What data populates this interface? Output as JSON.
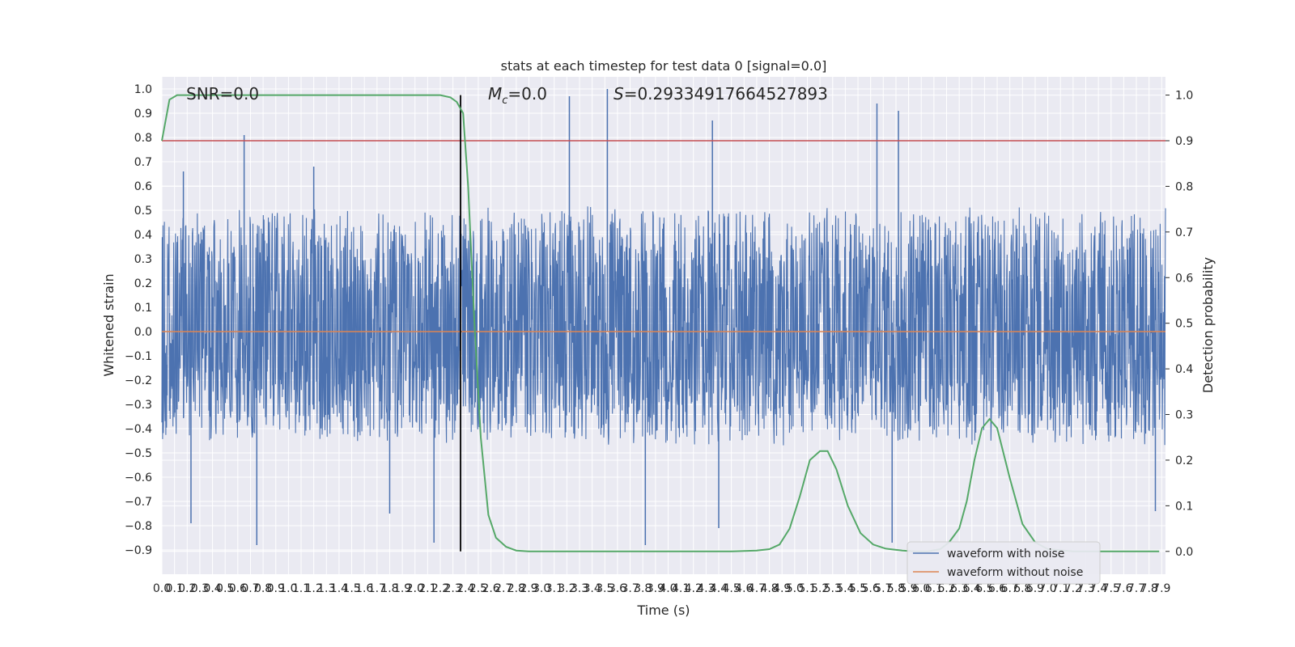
{
  "chart_data": {
    "type": "line",
    "title": "stats at each timestep for test data 0 [signal=0.0]",
    "xlabel": "Time (s)",
    "ylabel": "Whitened strain",
    "y2label": "Detection probability",
    "xlim": [
      0.0,
      7.93
    ],
    "ylim": [
      -1.0,
      1.05
    ],
    "y2lim": [
      -0.05,
      1.04
    ],
    "x_tick_step": 0.1,
    "y_ticks": [
      -0.9,
      -0.8,
      -0.7,
      -0.6,
      -0.5,
      -0.4,
      -0.3,
      -0.2,
      -0.1,
      0.0,
      0.1,
      0.2,
      0.3,
      0.4,
      0.5,
      0.6,
      0.7,
      0.8,
      0.9,
      1.0
    ],
    "y2_ticks": [
      0.0,
      0.1,
      0.2,
      0.3,
      0.4,
      0.5,
      0.6,
      0.7,
      0.8,
      0.9,
      1.0
    ],
    "grid": true,
    "legend_position": "lower-right",
    "annotations": {
      "snr": "SNR=0.0",
      "mc_symbol": "M",
      "mc_sub": "c",
      "mc_value": "=0.0",
      "s_symbol": "S",
      "s_value": "=0.29334917664527893"
    },
    "threshold": {
      "value": 0.9,
      "axis": "right",
      "color": "#c44e52"
    },
    "vline": {
      "x": 2.36,
      "color": "#000000"
    },
    "series": [
      {
        "name": "waveform with noise",
        "color": "#4c72b0",
        "noise_band": [
          -0.5,
          0.55
        ],
        "peaks": [
          [
            0.65,
            0.81
          ],
          [
            0.17,
            0.66
          ],
          [
            1.2,
            0.68
          ],
          [
            3.22,
            0.97
          ],
          [
            3.52,
            1.0
          ],
          [
            4.35,
            0.87
          ],
          [
            5.65,
            0.94
          ],
          [
            5.82,
            0.91
          ],
          [
            0.75,
            -0.88
          ],
          [
            0.23,
            -0.79
          ],
          [
            1.8,
            -0.75
          ],
          [
            2.15,
            -0.87
          ],
          [
            3.82,
            -0.88
          ],
          [
            5.77,
            -0.87
          ],
          [
            4.4,
            -0.81
          ],
          [
            7.85,
            -0.74
          ]
        ]
      },
      {
        "name": "waveform without noise",
        "color": "#dd8452",
        "value": 0.0
      },
      {
        "axis": "right",
        "color": "#55a868",
        "x": [
          0.0,
          0.06,
          0.12,
          0.2,
          0.4,
          0.8,
          1.2,
          1.6,
          2.0,
          2.2,
          2.28,
          2.33,
          2.38,
          2.42,
          2.47,
          2.52,
          2.58,
          2.64,
          2.72,
          2.8,
          2.9,
          3.0,
          3.2,
          3.5,
          4.0,
          4.5,
          4.7,
          4.8,
          4.88,
          4.96,
          5.04,
          5.12,
          5.2,
          5.26,
          5.33,
          5.42,
          5.52,
          5.62,
          5.72,
          5.85,
          5.95,
          6.05,
          6.15,
          6.22,
          6.3,
          6.36,
          6.42,
          6.48,
          6.54,
          6.6,
          6.7,
          6.8,
          6.9,
          7.0,
          7.2,
          7.5,
          7.88
        ],
        "values": [
          0.9,
          0.99,
          1.0,
          1.0,
          1.0,
          1.0,
          1.0,
          1.0,
          1.0,
          1.0,
          0.995,
          0.985,
          0.96,
          0.8,
          0.5,
          0.25,
          0.08,
          0.03,
          0.01,
          0.002,
          0.0,
          0.0,
          0.0,
          0.0,
          0.0,
          0.0,
          0.002,
          0.005,
          0.015,
          0.05,
          0.12,
          0.2,
          0.22,
          0.22,
          0.18,
          0.1,
          0.04,
          0.015,
          0.006,
          0.002,
          0.0,
          0.0,
          0.005,
          0.02,
          0.05,
          0.11,
          0.2,
          0.27,
          0.29,
          0.27,
          0.16,
          0.06,
          0.02,
          0.005,
          0.0,
          0.0,
          0.0
        ]
      }
    ]
  }
}
